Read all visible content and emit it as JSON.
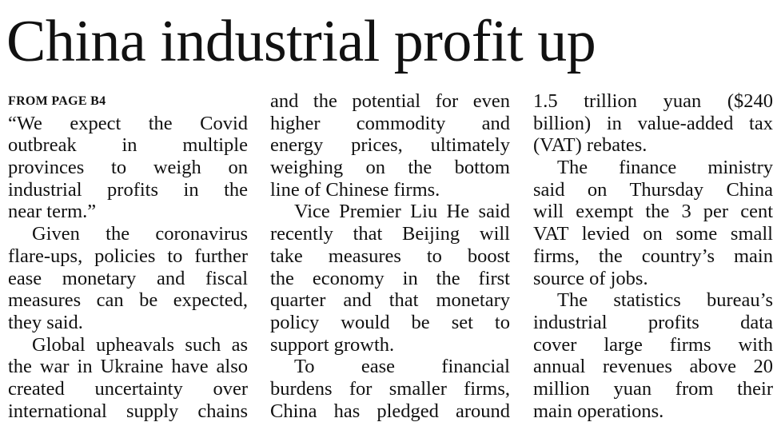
{
  "headline": "China industrial profit up",
  "dateline": "FROM PAGE B4",
  "columns": [
    [
      {
        "lines": [
          "“We expect the Covid",
          "outbreak in multiple",
          "provinces to weigh on",
          "industrial profits in the",
          "near term.”"
        ]
      },
      {
        "lines": [
          "Given the coronavirus",
          "flare-ups, policies to further",
          "ease monetary and fiscal",
          "measures can be expected,",
          "they said."
        ]
      },
      {
        "lines": [
          "Global upheavals such as",
          "the war in Ukraine have also",
          "created uncertainty over",
          "international supply chains"
        ],
        "continues": true
      }
    ],
    [
      {
        "lines": [
          "and the potential for even",
          "higher commodity and",
          "energy prices, ultimately",
          "weighing on the bottom",
          "line of Chinese firms."
        ],
        "continuation": true
      },
      {
        "lines": [
          "Vice Premier Liu He said",
          "recently that Beijing will",
          "take measures to boost",
          "the economy in the first",
          "quarter and that monetary",
          "policy would be set to",
          "support growth."
        ]
      },
      {
        "lines": [
          "To ease financial",
          "burdens for smaller firms,",
          "China has pledged around"
        ],
        "continues": true
      }
    ],
    [
      {
        "lines": [
          "1.5 trillion yuan ($240",
          "billion) in value-added tax",
          "(VAT) rebates."
        ],
        "continuation": true
      },
      {
        "lines": [
          "The finance ministry",
          "said on Thursday China",
          "will exempt the 3 per cent",
          "VAT levied on some small",
          "firms, the country’s main",
          "source of jobs."
        ]
      },
      {
        "lines": [
          "The statistics bureau’s",
          "industrial profits data",
          "cover large firms with",
          "annual revenues above 20",
          "million yuan from their",
          "main operations."
        ]
      }
    ]
  ]
}
